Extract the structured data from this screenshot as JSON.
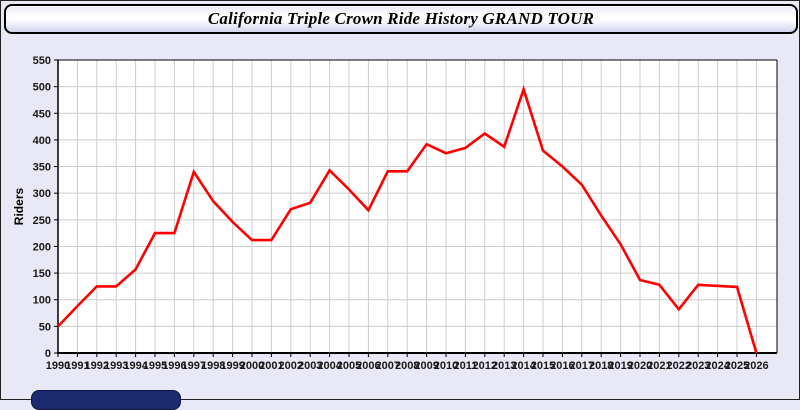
{
  "title": "California Triple Crown Ride History GRAND TOUR",
  "colors": {
    "page_bg": "#e8e8f6",
    "plot_bg": "#ffffff",
    "grid": "#cccccc",
    "axis": "#000000",
    "tick_label": "#1a1a1a",
    "line": "#ff0000",
    "footer_button": "#1c2a6e"
  },
  "chart_data": {
    "type": "line",
    "title": "California Triple Crown Ride History GRAND TOUR",
    "xlabel": "",
    "ylabel": "Riders",
    "ylim": [
      0,
      550
    ],
    "ytick_step": 50,
    "grid": true,
    "legend_position": "none",
    "categories": [
      "1990",
      "1991",
      "1992",
      "1993",
      "1994",
      "1995",
      "1996",
      "1997",
      "1998",
      "1999",
      "2000",
      "2001",
      "2002",
      "2003",
      "2004",
      "2005",
      "2006",
      "2007",
      "2008",
      "2009",
      "2010",
      "2011",
      "2012",
      "2013",
      "2014",
      "2015",
      "2016",
      "2017",
      "2018",
      "2019",
      "2020",
      "2021",
      "2022",
      "2023",
      "2024",
      "2025",
      "2026"
    ],
    "series": [
      {
        "name": "Riders",
        "color": "#ff0000",
        "values": [
          50,
          88,
          125,
          125,
          157,
          225,
          225,
          340,
          285,
          246,
          212,
          212,
          270,
          282,
          343,
          307,
          268,
          341,
          341,
          392,
          375,
          385,
          412,
          387,
          495,
          380,
          350,
          316,
          258,
          204,
          137,
          128,
          82,
          128,
          126,
          124,
          0
        ]
      }
    ]
  }
}
